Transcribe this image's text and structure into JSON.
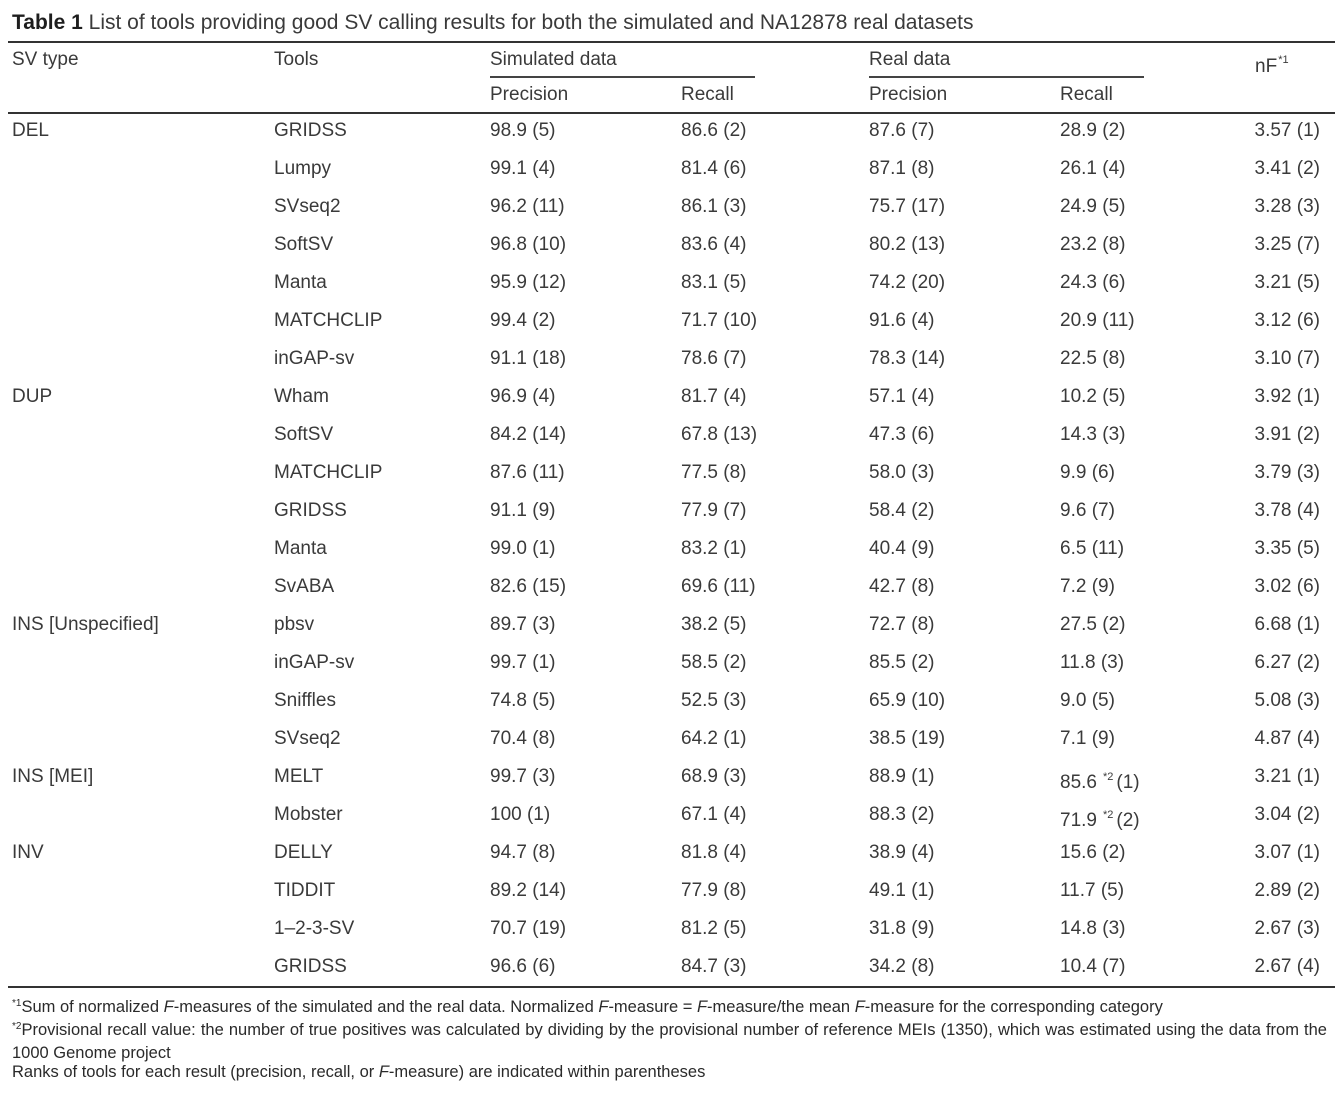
{
  "caption": {
    "label": "Table 1",
    "text": "List of tools providing good SV calling results for both the simulated and NA12878 real datasets"
  },
  "header": {
    "sv_type": "SV type",
    "tools": "Tools",
    "simulated": "Simulated data",
    "real": "Real data",
    "nf": "nF",
    "nf_mark": "*1",
    "precision": "Precision",
    "recall": "Recall"
  },
  "rows": [
    {
      "sv_type": "DEL",
      "tool": "GRIDSS",
      "sim_precision": "98.9 (5)",
      "sim_recall": "86.6 (2)",
      "real_precision": "87.6 (7)",
      "real_recall": "28.9 (2)",
      "nf": "3.57 (1)"
    },
    {
      "sv_type": "",
      "tool": "Lumpy",
      "sim_precision": "99.1 (4)",
      "sim_recall": "81.4 (6)",
      "real_precision": "87.1 (8)",
      "real_recall": "26.1 (4)",
      "nf": "3.41 (2)"
    },
    {
      "sv_type": "",
      "tool": "SVseq2",
      "sim_precision": "96.2 (11)",
      "sim_recall": "86.1 (3)",
      "real_precision": "75.7 (17)",
      "real_recall": "24.9 (5)",
      "nf": "3.28 (3)"
    },
    {
      "sv_type": "",
      "tool": "SoftSV",
      "sim_precision": "96.8 (10)",
      "sim_recall": "83.6 (4)",
      "real_precision": "80.2 (13)",
      "real_recall": "23.2 (8)",
      "nf": "3.25 (7)"
    },
    {
      "sv_type": "",
      "tool": "Manta",
      "sim_precision": "95.9 (12)",
      "sim_recall": "83.1 (5)",
      "real_precision": "74.2 (20)",
      "real_recall": "24.3 (6)",
      "nf": "3.21 (5)"
    },
    {
      "sv_type": "",
      "tool": "MATCHCLIP",
      "sim_precision": "99.4 (2)",
      "sim_recall": "71.7 (10)",
      "real_precision": "91.6 (4)",
      "real_recall": "20.9 (11)",
      "nf": "3.12 (6)"
    },
    {
      "sv_type": "",
      "tool": "inGAP-sv",
      "sim_precision": "91.1 (18)",
      "sim_recall": "78.6 (7)",
      "real_precision": "78.3 (14)",
      "real_recall": "22.5 (8)",
      "nf": "3.10 (7)"
    },
    {
      "sv_type": "DUP",
      "tool": "Wham",
      "sim_precision": "96.9 (4)",
      "sim_recall": "81.7 (4)",
      "real_precision": "57.1 (4)",
      "real_recall": "10.2 (5)",
      "nf": "3.92 (1)"
    },
    {
      "sv_type": "",
      "tool": "SoftSV",
      "sim_precision": "84.2 (14)",
      "sim_recall": "67.8 (13)",
      "real_precision": "47.3 (6)",
      "real_recall": "14.3 (3)",
      "nf": "3.91 (2)"
    },
    {
      "sv_type": "",
      "tool": "MATCHCLIP",
      "sim_precision": "87.6 (11)",
      "sim_recall": "77.5 (8)",
      "real_precision": "58.0 (3)",
      "real_recall": "9.9 (6)",
      "nf": "3.79 (3)"
    },
    {
      "sv_type": "",
      "tool": "GRIDSS",
      "sim_precision": "91.1 (9)",
      "sim_recall": "77.9 (7)",
      "real_precision": "58.4 (2)",
      "real_recall": "9.6 (7)",
      "nf": "3.78 (4)"
    },
    {
      "sv_type": "",
      "tool": "Manta",
      "sim_precision": "99.0 (1)",
      "sim_recall": "83.2 (1)",
      "real_precision": "40.4 (9)",
      "real_recall": "6.5 (11)",
      "nf": "3.35 (5)"
    },
    {
      "sv_type": "",
      "tool": "SvABA",
      "sim_precision": "82.6 (15)",
      "sim_recall": "69.6 (11)",
      "real_precision": "42.7 (8)",
      "real_recall": "7.2 (9)",
      "nf": "3.02 (6)"
    },
    {
      "sv_type": "INS [Unspecified]",
      "tool": "pbsv",
      "sim_precision": "89.7 (3)",
      "sim_recall": "38.2 (5)",
      "real_precision": "72.7 (8)",
      "real_recall": "27.5 (2)",
      "nf": "6.68 (1)"
    },
    {
      "sv_type": "",
      "tool": "inGAP-sv",
      "sim_precision": "99.7 (1)",
      "sim_recall": "58.5 (2)",
      "real_precision": "85.5 (2)",
      "real_recall": "11.8 (3)",
      "nf": "6.27 (2)"
    },
    {
      "sv_type": "",
      "tool": "Sniffles",
      "sim_precision": "74.8 (5)",
      "sim_recall": "52.5 (3)",
      "real_precision": "65.9 (10)",
      "real_recall": "9.0 (5)",
      "nf": "5.08 (3)"
    },
    {
      "sv_type": "",
      "tool": "SVseq2",
      "sim_precision": "70.4 (8)",
      "sim_recall": "64.2 (1)",
      "real_precision": "38.5 (19)",
      "real_recall": "7.1 (9)",
      "nf": "4.87 (4)"
    },
    {
      "sv_type": "INS [MEI]",
      "tool": "MELT",
      "sim_precision": "99.7 (3)",
      "sim_recall": "68.9 (3)",
      "real_precision": "88.9 (1)",
      "real_recall": "85.6",
      "real_recall_mark": "*2",
      "real_recall_rank": "(1)",
      "nf": "3.21 (1)"
    },
    {
      "sv_type": "",
      "tool": "Mobster",
      "sim_precision": "100 (1)",
      "sim_recall": "67.1 (4)",
      "real_precision": "88.3 (2)",
      "real_recall": "71.9",
      "real_recall_mark": "*2",
      "real_recall_rank": "(2)",
      "nf": "3.04 (2)"
    },
    {
      "sv_type": "INV",
      "tool": "DELLY",
      "sim_precision": "94.7 (8)",
      "sim_recall": "81.8 (4)",
      "real_precision": "38.9 (4)",
      "real_recall": "15.6 (2)",
      "nf": "3.07 (1)"
    },
    {
      "sv_type": "",
      "tool": "TIDDIT",
      "sim_precision": "89.2 (14)",
      "sim_recall": "77.9 (8)",
      "real_precision": "49.1 (1)",
      "real_recall": "11.7 (5)",
      "nf": "2.89 (2)"
    },
    {
      "sv_type": "",
      "tool": "1–2-3-SV",
      "sim_precision": "70.7 (19)",
      "sim_recall": "81.2 (5)",
      "real_precision": "31.8 (9)",
      "real_recall": "14.8 (3)",
      "nf": "2.67 (3)"
    },
    {
      "sv_type": "",
      "tool": "GRIDSS",
      "sim_precision": "96.6 (6)",
      "sim_recall": "84.7 (3)",
      "real_precision": "34.2 (8)",
      "real_recall": "10.4 (7)",
      "nf": "2.67 (4)"
    }
  ],
  "footnotes": {
    "fn1_mark": "*1",
    "fn1_a": "Sum of normalized ",
    "fn1_b": "F",
    "fn1_c": "-measures of the simulated and the real data. Normalized ",
    "fn1_d": "F",
    "fn1_e": "-measure = ",
    "fn1_f": "F",
    "fn1_g": "-measure/the mean ",
    "fn1_h": "F",
    "fn1_i": "-measure for the corresponding category",
    "fn2_mark": "*2",
    "fn2_text": "Provisional recall value: the number of true positives was calculated by dividing by the provisional number of reference MEIs (1350), which was estimated using the data from the 1000 Genome project",
    "fn3_a": "Ranks of tools for each result (precision, recall, or ",
    "fn3_b": "F",
    "fn3_c": "-measure) are indicated within parentheses"
  }
}
